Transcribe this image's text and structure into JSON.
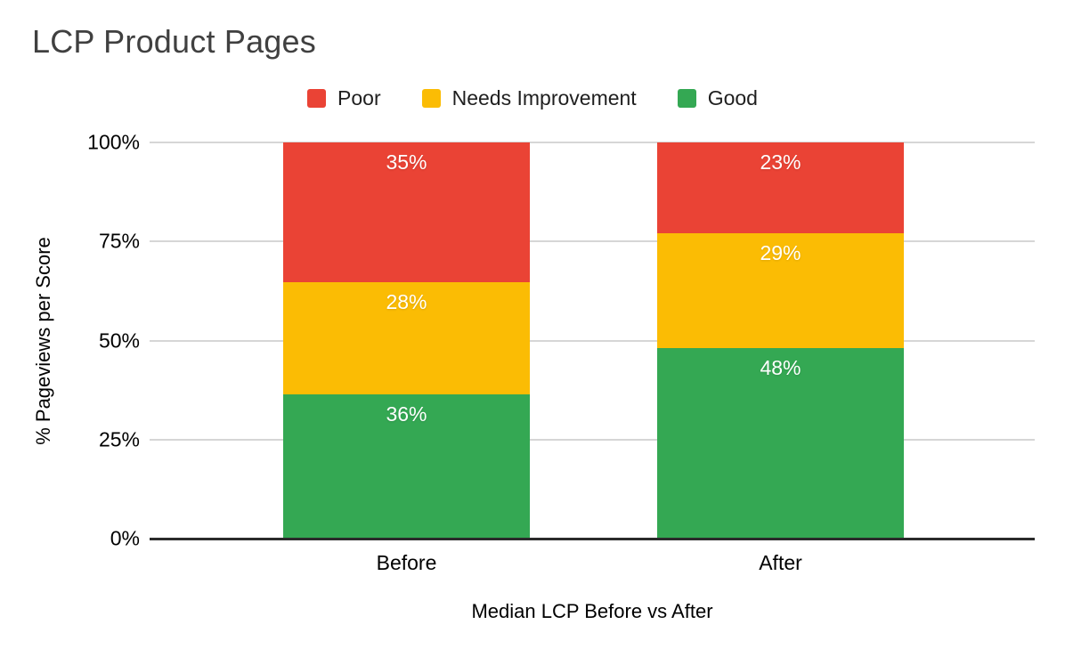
{
  "chart_data": {
    "type": "bar",
    "stacked": true,
    "title": "LCP Product Pages",
    "xlabel": "Median LCP Before vs After",
    "ylabel": "% Pageviews per Score",
    "categories": [
      "Before",
      "After"
    ],
    "series": [
      {
        "name": "Poor",
        "color": "#EA4335",
        "values": [
          35,
          23
        ]
      },
      {
        "name": "Needs Improvement",
        "color": "#FBBC04",
        "values": [
          28,
          29
        ]
      },
      {
        "name": "Good",
        "color": "#34A853",
        "values": [
          36,
          48
        ]
      }
    ],
    "data_label_suffix": "%",
    "y_ticks": [
      {
        "label": "0%",
        "value": 0
      },
      {
        "label": "25%",
        "value": 25
      },
      {
        "label": "50%",
        "value": 50
      },
      {
        "label": "75%",
        "value": 75
      },
      {
        "label": "100%",
        "value": 100
      }
    ],
    "ylim": [
      0,
      100
    ],
    "grid": true,
    "legend_position": "top",
    "colors": {
      "gridline": "#d6d6d6",
      "baseline": "#2b2b2b",
      "title": "#404040",
      "data_label": "#ffffff"
    }
  }
}
